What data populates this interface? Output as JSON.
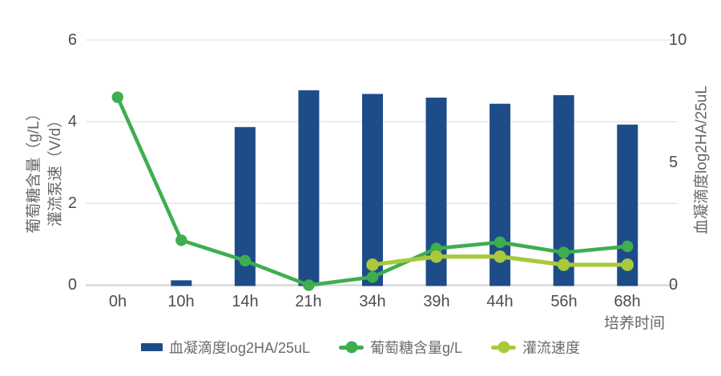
{
  "chart_data": {
    "type": "bar",
    "title": "",
    "categories": [
      "0h",
      "10h",
      "14h",
      "21h",
      "34h",
      "39h",
      "44h",
      "56h",
      "68h"
    ],
    "series": [
      {
        "name": "血凝滴度log2HA/25uL",
        "type": "bar",
        "y_axis": "right",
        "color": "#1d4c89",
        "values": [
          null,
          0.2,
          6.45,
          7.95,
          7.8,
          7.65,
          7.4,
          7.75,
          6.55
        ]
      },
      {
        "name": "葡萄糖含量g/L",
        "type": "line",
        "y_axis": "left",
        "color": "#3eae4e",
        "values": [
          4.6,
          1.1,
          0.6,
          0,
          0.2,
          0.9,
          1.05,
          0.8,
          0.95
        ]
      },
      {
        "name": "灌流速度",
        "type": "line",
        "y_axis": "left",
        "color": "#a8c93c",
        "values": [
          null,
          null,
          null,
          null,
          0.5,
          0.7,
          0.7,
          0.5,
          0.5
        ]
      }
    ],
    "left_axis": {
      "title_line1": "葡萄糖含量（g/L）",
      "title_line2": "灌流泵速（V/d）",
      "range": [
        0,
        6
      ],
      "ticks": [
        "0",
        "2",
        "4",
        "6"
      ]
    },
    "right_axis": {
      "title": "血凝滴度log2HA/25uL",
      "range": [
        0,
        10
      ],
      "ticks": [
        "0",
        "5",
        "10"
      ]
    },
    "x_axis": {
      "title": "培养时间"
    },
    "legend_position": "bottom",
    "grid": true,
    "colors": {
      "grid": "#e4e4e4",
      "axis_line": "#d9d9d9",
      "tick_text": "#4d4d4d",
      "axis_title_text": "#666666",
      "legend_text": "#6b6b6b",
      "background": "#ffffff"
    }
  },
  "legend": {
    "items": [
      {
        "label": "血凝滴度log2HA/25uL",
        "marker": "bar-swatch"
      },
      {
        "label": "葡萄糖含量g/L",
        "marker": "line-dot"
      },
      {
        "label": "灌流速度",
        "marker": "line-dot"
      }
    ]
  }
}
